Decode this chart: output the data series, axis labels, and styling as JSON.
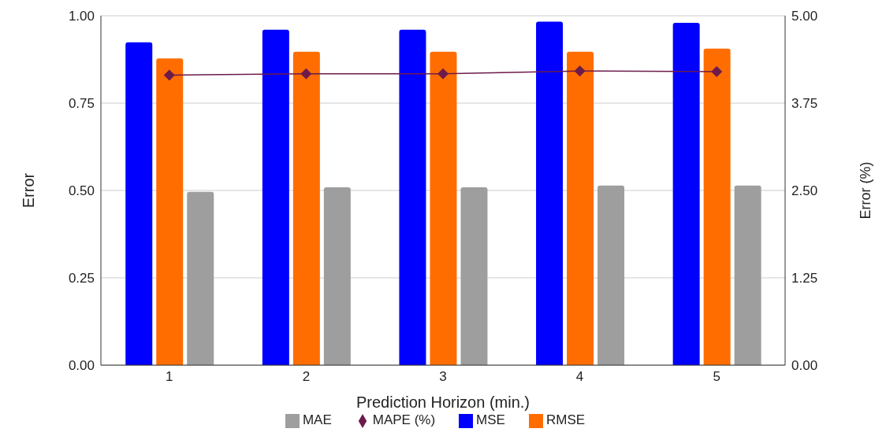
{
  "chart_data": {
    "type": "bar",
    "xlabel": "Prediction Horizon (min.)",
    "ylabel": "Error",
    "y2label": "Error (%)",
    "categories": [
      "1",
      "2",
      "3",
      "4",
      "5"
    ],
    "series": [
      {
        "name": "MSE",
        "color": "#0000ff",
        "values": [
          0.924,
          0.96,
          0.96,
          0.983,
          0.98
        ]
      },
      {
        "name": "RMSE",
        "color": "#ff6d00",
        "values": [
          0.878,
          0.897,
          0.897,
          0.897,
          0.906
        ]
      },
      {
        "name": "MAE",
        "color": "#9e9e9e",
        "values": [
          0.496,
          0.509,
          0.509,
          0.514,
          0.514
        ]
      },
      {
        "name": "MAPE (%)",
        "type": "line",
        "axis": "y2",
        "color": "#6d1b4b",
        "values": [
          4.15,
          4.17,
          4.17,
          4.21,
          4.2
        ]
      }
    ],
    "ylim": [
      0,
      1
    ],
    "yticks": [
      {
        "value": 0,
        "label": "0.00"
      },
      {
        "value": 0.25,
        "label": "0.25"
      },
      {
        "value": 0.5,
        "label": "0.50"
      },
      {
        "value": 0.75,
        "label": "0.75"
      },
      {
        "value": 1,
        "label": "1.00"
      }
    ],
    "y2lim": [
      0,
      5
    ],
    "y2ticks": [
      {
        "value": 0,
        "label": "0.00"
      },
      {
        "value": 1.25,
        "label": "1.25"
      },
      {
        "value": 2.5,
        "label": "2.50"
      },
      {
        "value": 3.75,
        "label": "3.75"
      },
      {
        "value": 5,
        "label": "5.00"
      }
    ],
    "grid": "y",
    "legend": "bottom",
    "marker": "diamond",
    "line_style": "solid"
  }
}
